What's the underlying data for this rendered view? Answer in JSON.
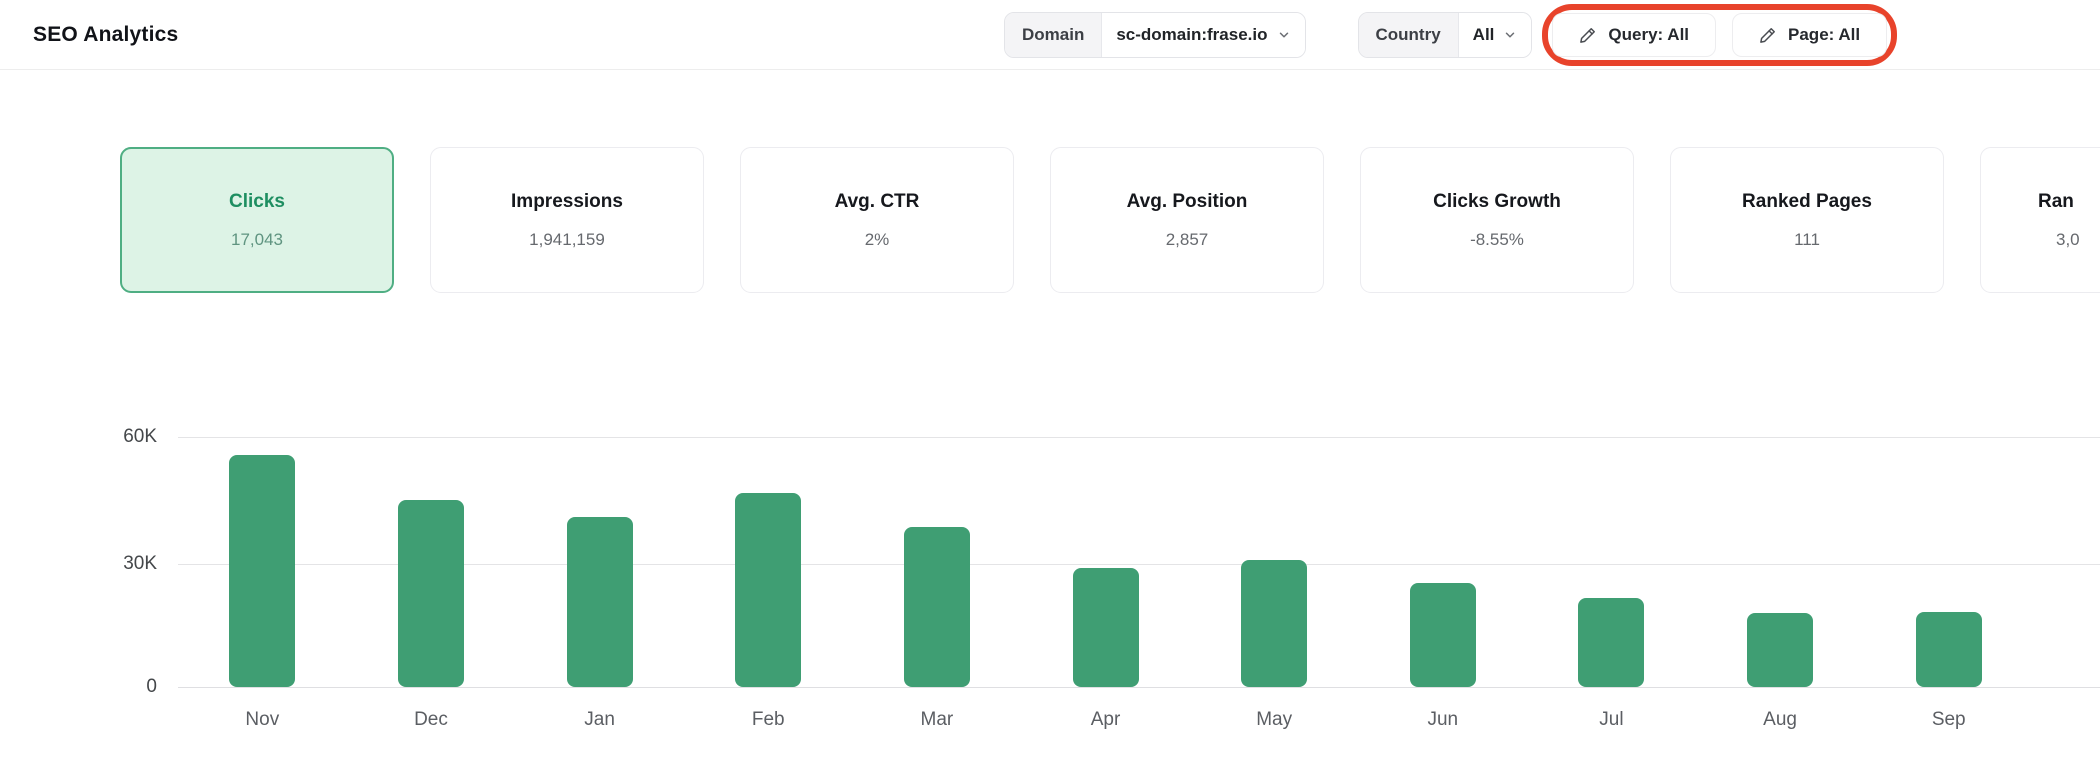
{
  "header": {
    "title": "SEO Analytics",
    "domain_filter": {
      "label": "Domain",
      "value": "sc-domain:frase.io"
    },
    "country_filter": {
      "label": "Country",
      "value": "All"
    },
    "query_filter_label": "Query: All",
    "page_filter_label": "Page: All"
  },
  "metric_cards": [
    {
      "label": "Clicks",
      "value": "17,043",
      "selected": true
    },
    {
      "label": "Impressions",
      "value": "1,941,159",
      "selected": false
    },
    {
      "label": "Avg. CTR",
      "value": "2%",
      "selected": false
    },
    {
      "label": "Avg. Position",
      "value": "2,857",
      "selected": false
    },
    {
      "label": "Clicks Growth",
      "value": "-8.55%",
      "selected": false
    },
    {
      "label": "Ranked Pages",
      "value": "111",
      "selected": false
    },
    {
      "label": "Ran",
      "value": "3,0",
      "selected": false,
      "clipped": true
    }
  ],
  "chart_data": {
    "type": "bar",
    "title": "",
    "xlabel": "",
    "ylabel": "",
    "series_name": "Clicks",
    "categories": [
      "Nov",
      "Dec",
      "Jan",
      "Feb",
      "Mar",
      "Apr",
      "May",
      "Jun",
      "Jul",
      "Aug",
      "Sep"
    ],
    "values": [
      55700,
      44900,
      40800,
      46600,
      38400,
      28600,
      30500,
      25000,
      21400,
      17800,
      18000
    ],
    "ylim": [
      0,
      60000
    ],
    "ytick_labels": [
      "60K",
      "30K",
      "0"
    ],
    "grid": true,
    "legend": false,
    "bar_color": "#3f9e73"
  },
  "icons": {
    "pencil": "pencil-edit-icon",
    "chevron": "chevron-down-icon"
  },
  "colors": {
    "annotation_red": "#e8432b",
    "selected_card_bg": "#ddf3e6",
    "selected_card_border": "#4fae83",
    "selected_card_text": "#1e8e61",
    "bar_green": "#3f9e73"
  }
}
